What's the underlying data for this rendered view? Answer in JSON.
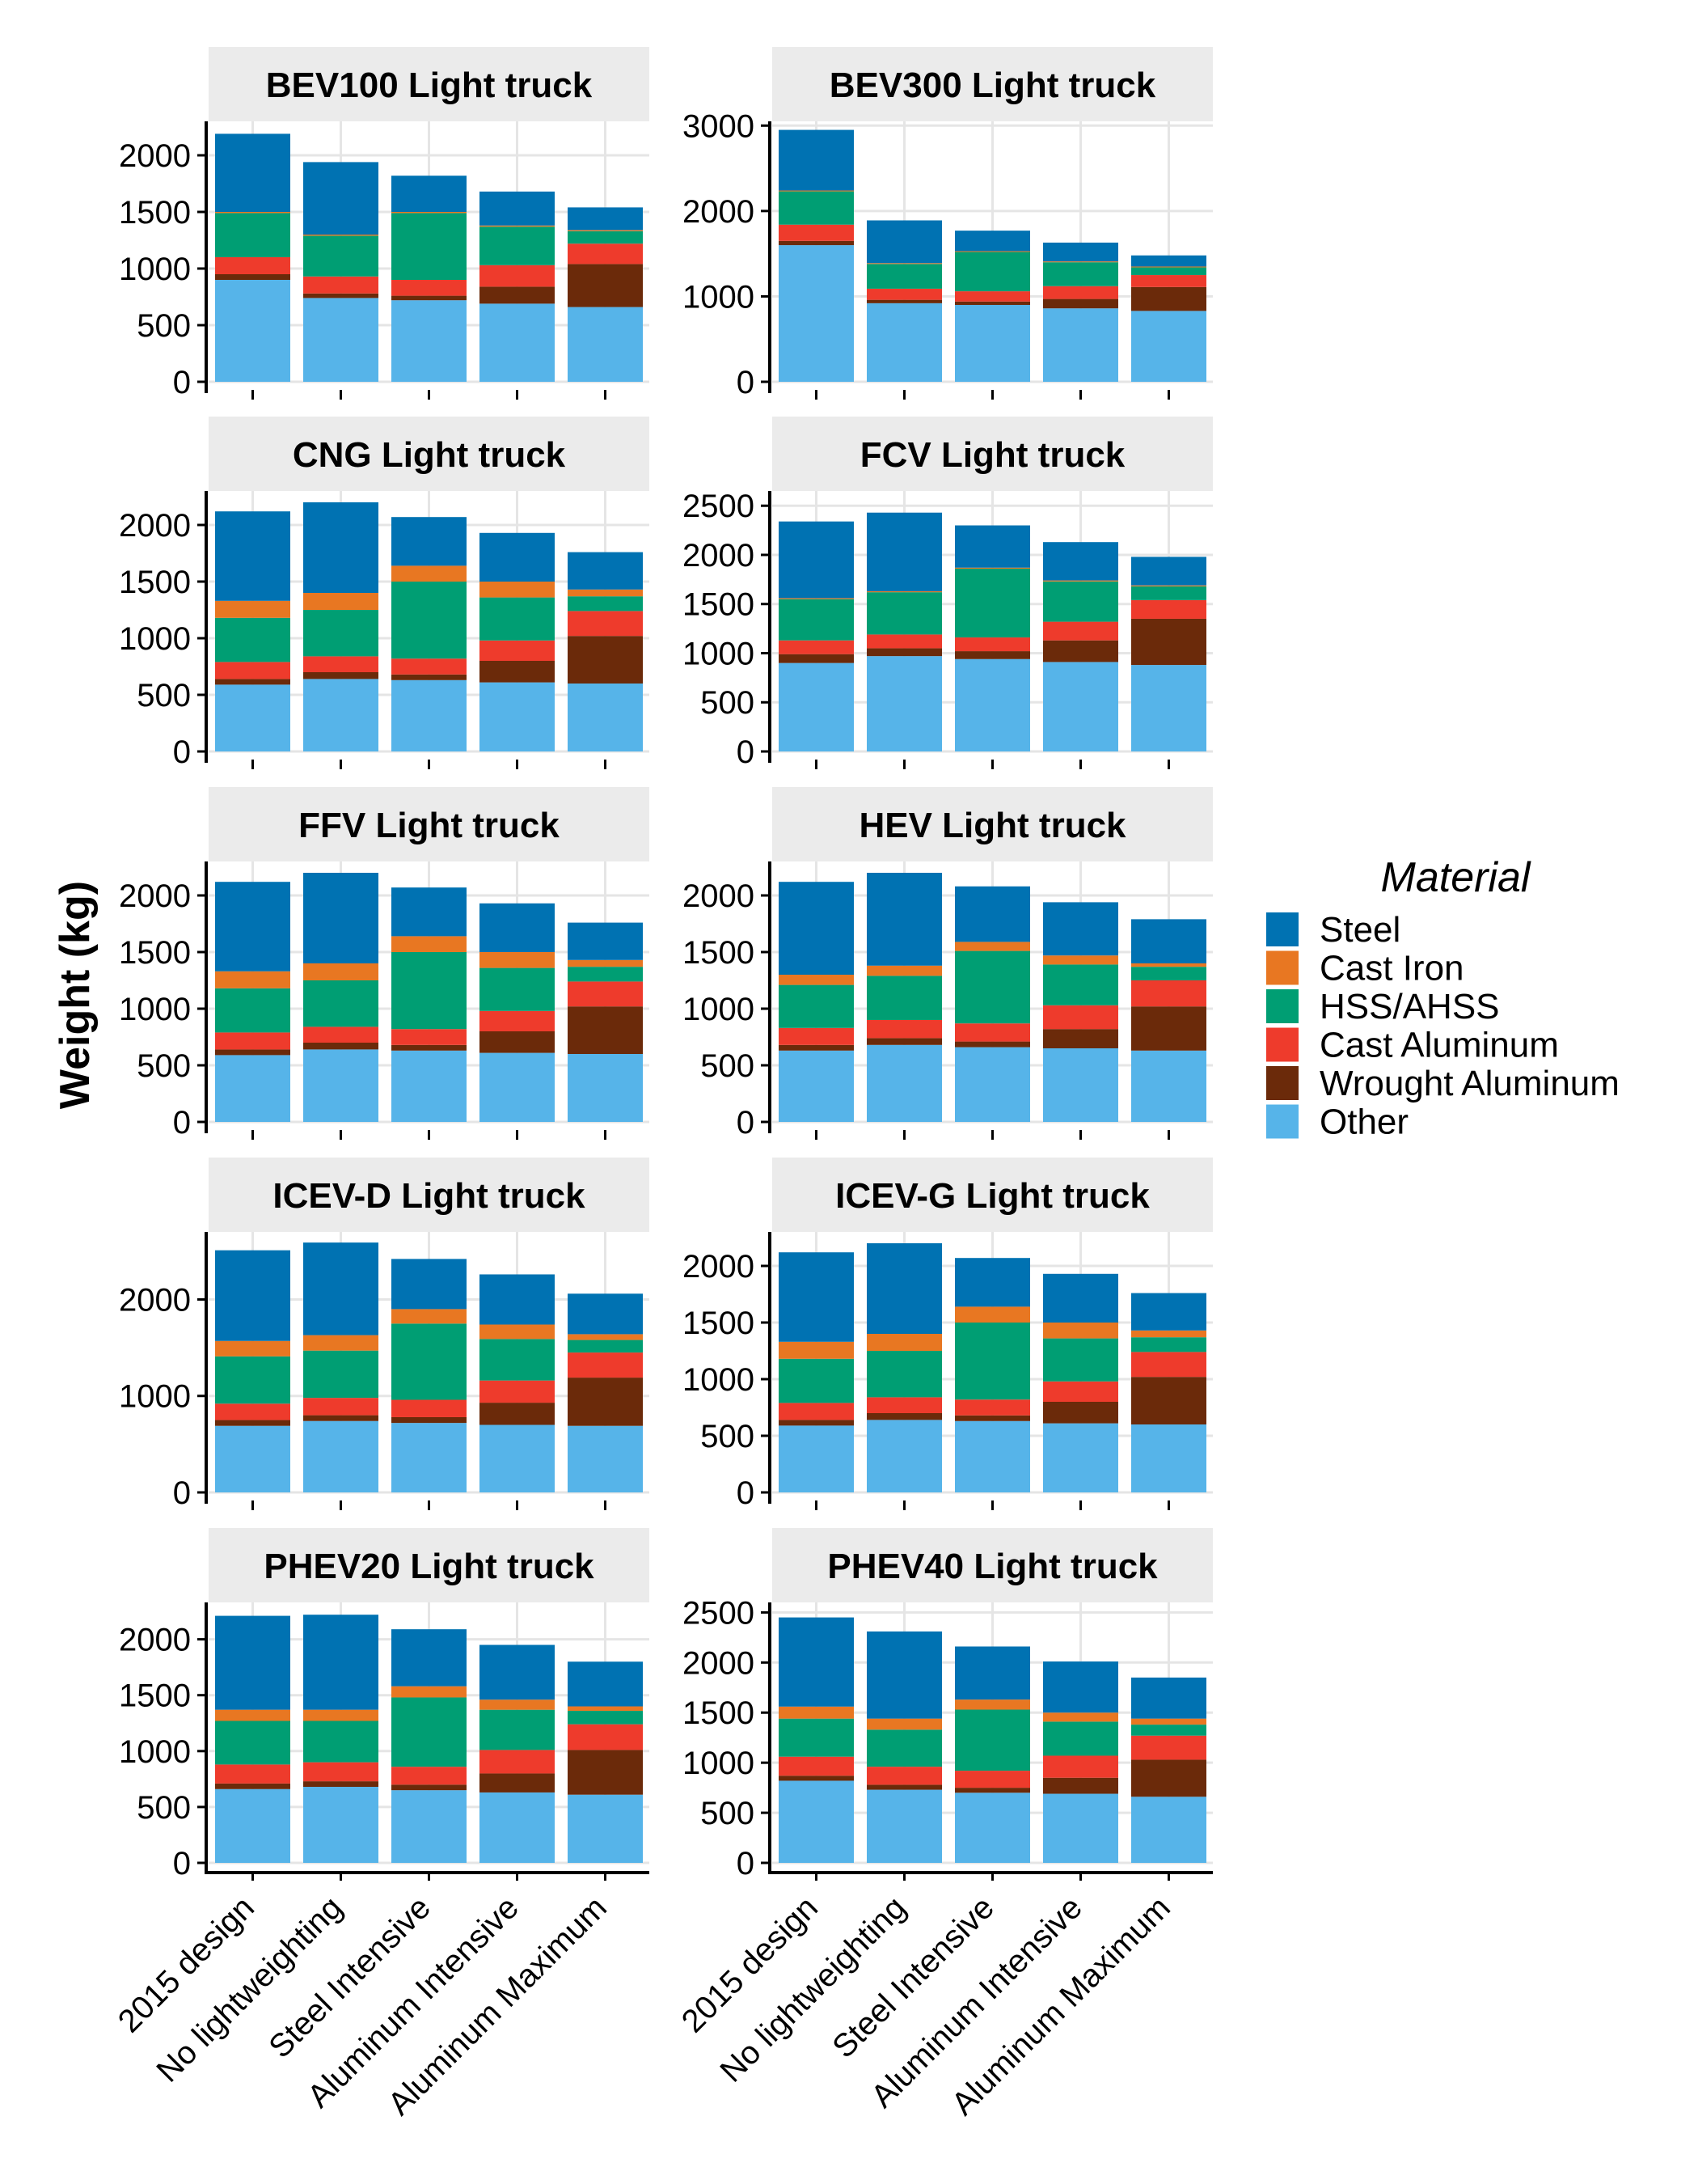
{
  "chart_data": {
    "type": "bar",
    "stacked": true,
    "ylabel": "Weight (kg)",
    "grid": true,
    "legend": {
      "title": "Material",
      "placement": "right",
      "entries": [
        "Steel",
        "Cast Iron",
        "HSS/AHSS",
        "Cast Aluminum",
        "Wrought Aluminum",
        "Other"
      ]
    },
    "colors": {
      "Other": "#56B4E9",
      "Wrought Aluminum": "#6B2A0A",
      "Cast Aluminum": "#EE3B2C",
      "HSS/AHSS": "#009E73",
      "Cast Iron": "#E87722",
      "Steel": "#0072B2",
      "strip": "#EBEBEB",
      "grid": "#E5E5E5"
    },
    "stack_order": [
      "Other",
      "Wrought Aluminum",
      "Cast Aluminum",
      "HSS/AHSS",
      "Cast Iron",
      "Steel"
    ],
    "categories": [
      "2015 design",
      "No lightweighting",
      "Steel Intensive",
      "Aluminum Intensive",
      "Aluminum Maximum"
    ],
    "panels": [
      {
        "title": "BEV100 Light truck",
        "ylim": [
          0,
          2300
        ],
        "yticks": [
          0,
          500,
          1000,
          1500,
          2000
        ],
        "series": {
          "Other": [
            900,
            740,
            720,
            690,
            660
          ],
          "Wrought Aluminum": [
            50,
            40,
            40,
            150,
            380
          ],
          "Cast Aluminum": [
            150,
            150,
            140,
            190,
            180
          ],
          "HSS/AHSS": [
            390,
            360,
            590,
            340,
            110
          ],
          "Cast Iron": [
            10,
            10,
            10,
            10,
            10
          ],
          "Steel": [
            690,
            640,
            320,
            300,
            200
          ]
        }
      },
      {
        "title": "BEV300 Light truck",
        "ylim": [
          0,
          3050
        ],
        "yticks": [
          0,
          1000,
          2000,
          3000
        ],
        "series": {
          "Other": [
            1600,
            920,
            900,
            860,
            830
          ],
          "Wrought Aluminum": [
            50,
            40,
            40,
            110,
            280
          ],
          "Cast Aluminum": [
            190,
            130,
            120,
            150,
            140
          ],
          "HSS/AHSS": [
            390,
            290,
            460,
            280,
            90
          ],
          "Cast Iron": [
            10,
            10,
            10,
            10,
            10
          ],
          "Steel": [
            710,
            500,
            240,
            220,
            130
          ]
        }
      },
      {
        "title": "CNG Light truck",
        "ylim": [
          0,
          2300
        ],
        "yticks": [
          0,
          500,
          1000,
          1500,
          2000
        ],
        "series": {
          "Other": [
            590,
            640,
            630,
            610,
            600
          ],
          "Wrought Aluminum": [
            50,
            60,
            50,
            190,
            420
          ],
          "Cast Aluminum": [
            150,
            140,
            140,
            180,
            220
          ],
          "HSS/AHSS": [
            390,
            410,
            680,
            380,
            130
          ],
          "Cast Iron": [
            150,
            150,
            140,
            140,
            60
          ],
          "Steel": [
            790,
            800,
            430,
            430,
            330
          ]
        }
      },
      {
        "title": "FCV Light truck",
        "ylim": [
          0,
          2650
        ],
        "yticks": [
          0,
          500,
          1000,
          1500,
          2000,
          2500
        ],
        "series": {
          "Other": [
            900,
            970,
            940,
            910,
            880
          ],
          "Wrought Aluminum": [
            90,
            80,
            80,
            220,
            470
          ],
          "Cast Aluminum": [
            140,
            140,
            140,
            190,
            190
          ],
          "HSS/AHSS": [
            420,
            430,
            700,
            410,
            140
          ],
          "Cast Iron": [
            10,
            10,
            10,
            10,
            10
          ],
          "Steel": [
            780,
            800,
            430,
            390,
            290
          ]
        }
      },
      {
        "title": "FFV Light truck",
        "ylim": [
          0,
          2300
        ],
        "yticks": [
          0,
          500,
          1000,
          1500,
          2000
        ],
        "series": {
          "Other": [
            590,
            640,
            630,
            610,
            600
          ],
          "Wrought Aluminum": [
            50,
            60,
            50,
            190,
            420
          ],
          "Cast Aluminum": [
            150,
            140,
            140,
            180,
            220
          ],
          "HSS/AHSS": [
            390,
            410,
            680,
            380,
            130
          ],
          "Cast Iron": [
            150,
            150,
            140,
            140,
            60
          ],
          "Steel": [
            790,
            800,
            430,
            430,
            330
          ]
        }
      },
      {
        "title": "HEV Light truck",
        "ylim": [
          0,
          2300
        ],
        "yticks": [
          0,
          500,
          1000,
          1500,
          2000
        ],
        "series": {
          "Other": [
            630,
            680,
            660,
            650,
            630
          ],
          "Wrought Aluminum": [
            50,
            60,
            50,
            170,
            390
          ],
          "Cast Aluminum": [
            150,
            160,
            160,
            210,
            230
          ],
          "HSS/AHSS": [
            380,
            390,
            640,
            360,
            120
          ],
          "Cast Iron": [
            90,
            90,
            80,
            80,
            30
          ],
          "Steel": [
            820,
            820,
            490,
            470,
            390
          ]
        }
      },
      {
        "title": "ICEV-D Light truck",
        "ylim": [
          0,
          2700
        ],
        "yticks": [
          0,
          1000,
          2000
        ],
        "series": {
          "Other": [
            690,
            740,
            720,
            700,
            690
          ],
          "Wrought Aluminum": [
            60,
            60,
            60,
            230,
            500
          ],
          "Cast Aluminum": [
            170,
            180,
            180,
            230,
            260
          ],
          "HSS/AHSS": [
            490,
            490,
            790,
            430,
            130
          ],
          "Cast Iron": [
            160,
            160,
            150,
            150,
            60
          ],
          "Steel": [
            940,
            960,
            520,
            520,
            420
          ]
        }
      },
      {
        "title": "ICEV-G Light truck",
        "ylim": [
          0,
          2300
        ],
        "yticks": [
          0,
          500,
          1000,
          1500,
          2000
        ],
        "series": {
          "Other": [
            590,
            640,
            630,
            610,
            600
          ],
          "Wrought Aluminum": [
            50,
            60,
            50,
            190,
            420
          ],
          "Cast Aluminum": [
            150,
            140,
            140,
            180,
            220
          ],
          "HSS/AHSS": [
            390,
            410,
            680,
            380,
            130
          ],
          "Cast Iron": [
            150,
            150,
            140,
            140,
            60
          ],
          "Steel": [
            790,
            800,
            430,
            430,
            330
          ]
        }
      },
      {
        "title": "PHEV20 Light truck",
        "ylim": [
          0,
          2330
        ],
        "yticks": [
          0,
          500,
          1000,
          1500,
          2000
        ],
        "series": {
          "Other": [
            660,
            680,
            650,
            630,
            610
          ],
          "Wrought Aluminum": [
            50,
            50,
            50,
            170,
            400
          ],
          "Cast Aluminum": [
            170,
            170,
            160,
            210,
            230
          ],
          "HSS/AHSS": [
            390,
            370,
            620,
            360,
            120
          ],
          "Cast Iron": [
            100,
            100,
            100,
            90,
            40
          ],
          "Steel": [
            840,
            850,
            510,
            490,
            400
          ]
        }
      },
      {
        "title": "PHEV40 Light truck",
        "ylim": [
          0,
          2600
        ],
        "yticks": [
          0,
          500,
          1000,
          1500,
          2000,
          2500
        ],
        "series": {
          "Other": [
            820,
            730,
            700,
            690,
            660
          ],
          "Wrought Aluminum": [
            50,
            50,
            50,
            160,
            370
          ],
          "Cast Aluminum": [
            190,
            180,
            170,
            220,
            240
          ],
          "HSS/AHSS": [
            380,
            370,
            610,
            340,
            110
          ],
          "Cast Iron": [
            120,
            110,
            100,
            90,
            60
          ],
          "Steel": [
            890,
            870,
            530,
            510,
            410
          ]
        }
      }
    ]
  }
}
